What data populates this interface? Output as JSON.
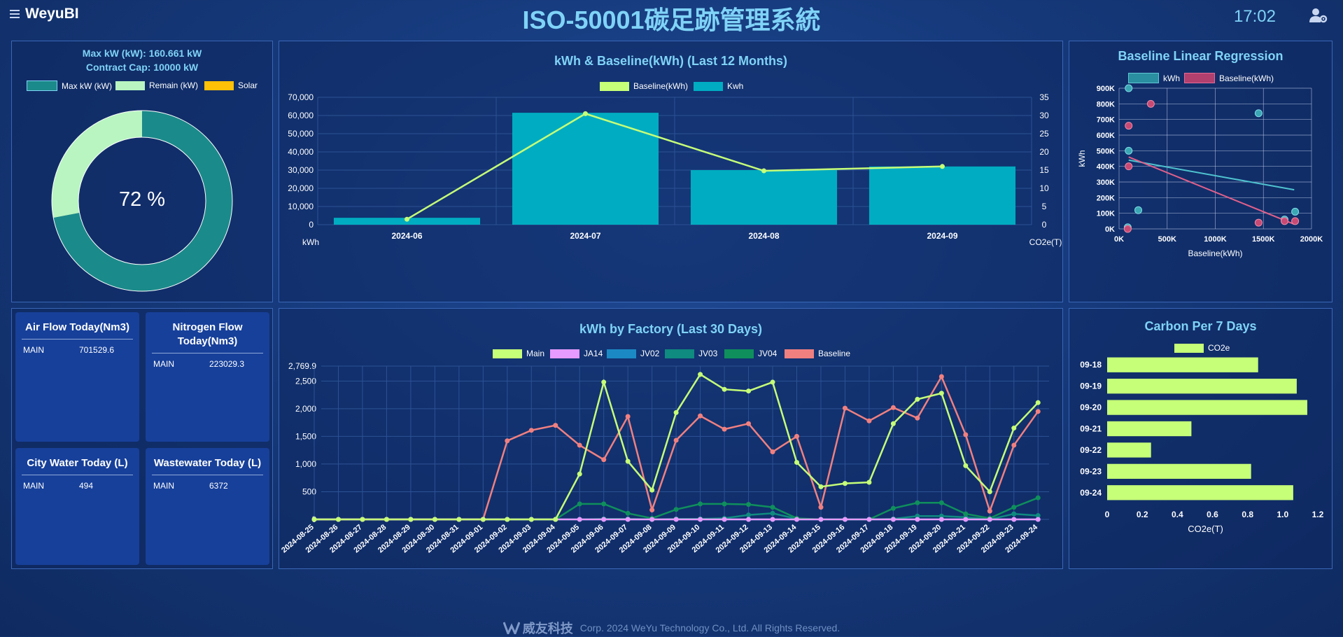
{
  "header": {
    "brand": "WeyuBI",
    "title": "ISO-50001碳足跡管理系統",
    "time": "17:02"
  },
  "colors": {
    "accent": "#7fd3f7",
    "kwh_bar": "#00acc1",
    "lime": "#c6ff78",
    "pink": "#f08080",
    "violet": "#e79aff",
    "blue": "#1b8ac4",
    "teal": "#0f8b7f",
    "green": "#0f8f5c",
    "donut_max": "#1b8a8a",
    "donut_remain": "#b8f5c0",
    "solar": "#ffc107"
  },
  "donut": {
    "line1": "Max kW (kW): 160.661 kW",
    "line2": "Contract Cap: 10000 kW",
    "legend": [
      "Max kW (kW)",
      "Remain (kW)",
      "Solar"
    ],
    "center_label": "72 %",
    "percent": 72
  },
  "flows": [
    {
      "title": "Air Flow Today(Nm3)",
      "name": "MAIN",
      "value": "701529.6"
    },
    {
      "title": "Nitrogen Flow Today(Nm3)",
      "name": "MAIN",
      "value": "223029.3"
    },
    {
      "title": "City Water Today (L)",
      "name": "MAIN",
      "value": "494"
    },
    {
      "title": "Wastewater Today (L)",
      "name": "MAIN",
      "value": "6372"
    }
  ],
  "footer": {
    "brand": "威友科技",
    "copyright": "Corp. 2024 WeYu Technology Co., Ltd. All Rights Reserved."
  },
  "chart_data": [
    {
      "type": "bar",
      "id": "monthly",
      "title": "kWh & Baseline(kWh) (Last 12 Months)",
      "categories": [
        "2024-06",
        "2024-07",
        "2024-08",
        "2024-09"
      ],
      "series": [
        {
          "name": "Baseline(kWh)",
          "type": "line",
          "axis": "right",
          "values": [
            1.5,
            30.5,
            14.8,
            16.0
          ]
        },
        {
          "name": "Kwh",
          "type": "bar",
          "axis": "left",
          "values": [
            3800,
            61500,
            30000,
            32000
          ]
        }
      ],
      "ylabel": "kWh",
      "y2label": "CO2e(T)",
      "ylim": [
        0,
        70000
      ],
      "y2lim": [
        0,
        35
      ],
      "yticks": [
        "0",
        "10,000",
        "20,000",
        "30,000",
        "40,000",
        "50,000",
        "60,000",
        "70,000"
      ],
      "y2ticks": [
        "0",
        "5",
        "10",
        "15",
        "20",
        "25",
        "30",
        "35"
      ]
    },
    {
      "type": "scatter",
      "id": "regression",
      "title": "Baseline Linear Regression",
      "xlabel": "Baseline(kWh)",
      "ylabel": "kWh",
      "xlim": [
        0,
        2000000
      ],
      "ylim": [
        0,
        900000
      ],
      "xticks": [
        "0K",
        "500K",
        "1000K",
        "1500K",
        "2000K"
      ],
      "yticks": [
        "0K",
        "100K",
        "200K",
        "300K",
        "400K",
        "500K",
        "600K",
        "700K",
        "800K",
        "900K"
      ],
      "series": [
        {
          "name": "kWh",
          "points": [
            [
              100000,
              900000
            ],
            [
              100000,
              500000
            ],
            [
              200000,
              120000
            ],
            [
              1450000,
              740000
            ],
            [
              1720000,
              60000
            ],
            [
              1830000,
              110000
            ],
            [
              90000,
              10000
            ]
          ],
          "trend": [
            [
              100000,
              440000
            ],
            [
              1820000,
              250000
            ]
          ]
        },
        {
          "name": "Baseline(kWh)",
          "points": [
            [
              330000,
              800000
            ],
            [
              100000,
              660000
            ],
            [
              100000,
              400000
            ],
            [
              1450000,
              40000
            ],
            [
              1720000,
              50000
            ],
            [
              1830000,
              50000
            ],
            [
              90000,
              0
            ]
          ],
          "trend": [
            [
              100000,
              460000
            ],
            [
              1820000,
              30000
            ]
          ]
        }
      ]
    },
    {
      "type": "line",
      "id": "factory",
      "title": "kWh by Factory (Last 30 Days)",
      "ylim": [
        0,
        2769.9
      ],
      "yticks": [
        "0",
        "500",
        "1,000",
        "1,500",
        "2,000",
        "2,500",
        "2,769.9"
      ],
      "categories": [
        "2024-08-25",
        "2024-08-26",
        "2024-08-27",
        "2024-08-28",
        "2024-08-29",
        "2024-08-30",
        "2024-08-31",
        "2024-09-01",
        "2024-09-02",
        "2024-09-03",
        "2024-09-04",
        "2024-09-05",
        "2024-09-06",
        "2024-09-07",
        "2024-09-08",
        "2024-09-09",
        "2024-09-10",
        "2024-09-11",
        "2024-09-12",
        "2024-09-13",
        "2024-09-14",
        "2024-09-15",
        "2024-09-16",
        "2024-09-17",
        "2024-09-18",
        "2024-09-19",
        "2024-09-20",
        "2024-09-21",
        "2024-09-22",
        "2024-09-23",
        "2024-09-24"
      ],
      "series": [
        {
          "name": "Main",
          "values": [
            0,
            0,
            0,
            0,
            0,
            0,
            0,
            0,
            0,
            0,
            0,
            820,
            2480,
            1050,
            530,
            1930,
            2620,
            2350,
            2320,
            2480,
            1030,
            590,
            650,
            670,
            1730,
            2170,
            2280,
            970,
            500,
            1650,
            2110
          ]
        },
        {
          "name": "JA14",
          "values": [
            0,
            0,
            0,
            0,
            0,
            0,
            0,
            0,
            0,
            0,
            0,
            0,
            0,
            0,
            0,
            0,
            0,
            0,
            0,
            0,
            0,
            0,
            0,
            0,
            0,
            0,
            0,
            0,
            0,
            0,
            0
          ]
        },
        {
          "name": "JV02",
          "values": [
            0,
            0,
            0,
            0,
            0,
            0,
            0,
            0,
            0,
            0,
            0,
            0,
            0,
            0,
            0,
            0,
            0,
            0,
            0,
            0,
            0,
            0,
            0,
            0,
            0,
            0,
            0,
            0,
            0,
            0,
            0
          ]
        },
        {
          "name": "JV03",
          "values": [
            0,
            0,
            0,
            0,
            0,
            0,
            0,
            0,
            0,
            0,
            0,
            0,
            10,
            10,
            0,
            10,
            10,
            20,
            80,
            110,
            10,
            0,
            0,
            0,
            10,
            60,
            60,
            40,
            0,
            100,
            70
          ]
        },
        {
          "name": "JV04",
          "values": [
            0,
            0,
            0,
            0,
            0,
            0,
            0,
            0,
            0,
            0,
            0,
            280,
            280,
            110,
            20,
            180,
            280,
            280,
            270,
            220,
            20,
            0,
            0,
            0,
            200,
            300,
            300,
            100,
            20,
            220,
            390
          ]
        },
        {
          "name": "Baseline",
          "values": [
            0,
            0,
            0,
            0,
            0,
            0,
            0,
            0,
            1420,
            1610,
            1700,
            1340,
            1080,
            1860,
            170,
            1430,
            1870,
            1630,
            1730,
            1220,
            1500,
            220,
            2010,
            1780,
            2020,
            1830,
            2580,
            1530,
            150,
            1340,
            1950
          ]
        }
      ]
    },
    {
      "type": "bar",
      "id": "carbon7",
      "title": "Carbon Per 7 Days",
      "orientation": "horizontal",
      "categories": [
        "09-18",
        "09-19",
        "09-20",
        "09-21",
        "09-22",
        "09-23",
        "09-24"
      ],
      "series": [
        {
          "name": "CO2e",
          "values": [
            0.86,
            1.08,
            1.14,
            0.48,
            0.25,
            0.82,
            1.06
          ]
        }
      ],
      "xlabel": "CO2e(T)",
      "xlim": [
        0,
        1.2
      ],
      "xticks": [
        "0",
        "0.2",
        "0.4",
        "0.6",
        "0.8",
        "1.0",
        "1.2"
      ]
    }
  ]
}
